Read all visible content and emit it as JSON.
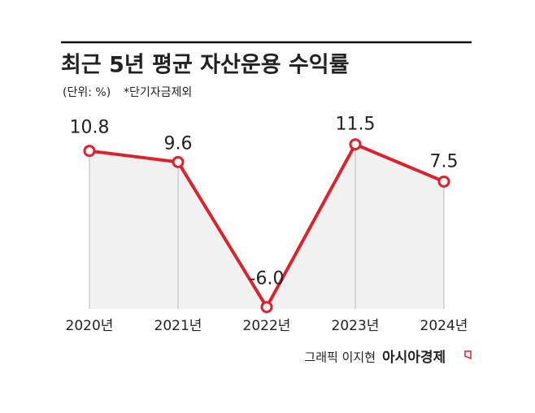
{
  "chart_data": {
    "type": "line",
    "title": "최근 5년 평균 자산운용 수익률",
    "unit_note": "(단위: %)",
    "subtitle": "*단기자금제외",
    "categories": [
      "2020년",
      "2021년",
      "2022년",
      "2023년",
      "2024년"
    ],
    "series": [
      {
        "name": "평균 자산운용 수익률",
        "color": "#d9232e",
        "values": [
          10.8,
          9.6,
          -6.0,
          11.5,
          7.5
        ],
        "value_labels": [
          "10.8",
          "9.6",
          "-6.0",
          "11.5",
          "7.5"
        ]
      }
    ],
    "ylim": [
      -6.2,
      14
    ],
    "credit": "그래픽 이지현",
    "source": "아시아경제"
  }
}
